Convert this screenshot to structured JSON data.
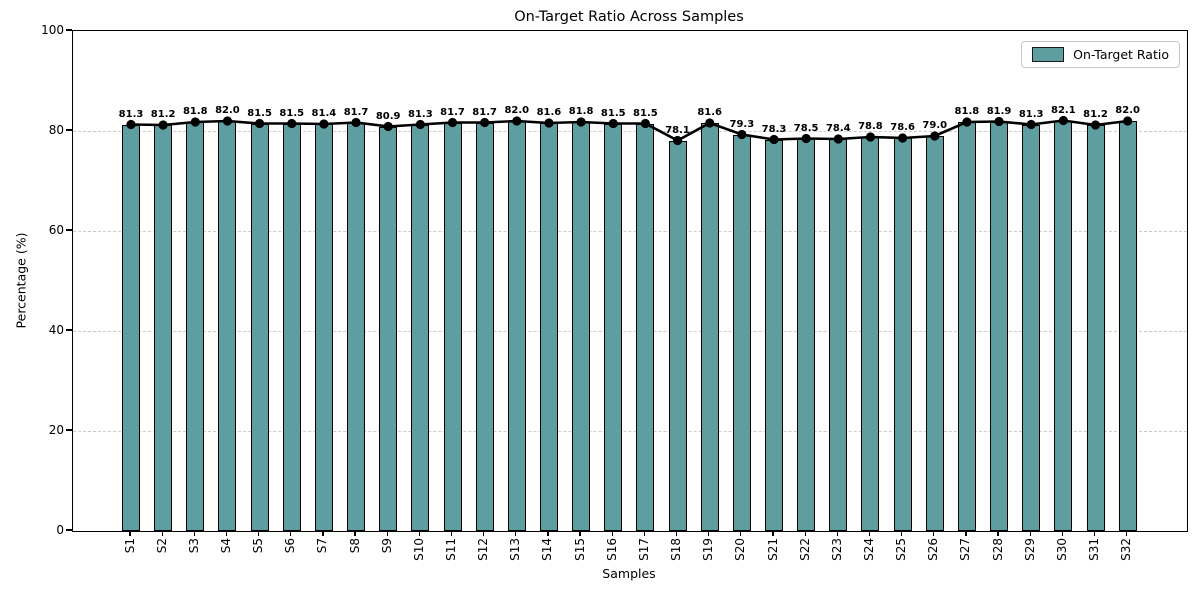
{
  "chart_data": {
    "type": "bar",
    "title": "On-Target Ratio Across Samples",
    "xlabel": "Samples",
    "ylabel": "Percentage (%)",
    "categories": [
      "S1",
      "S2",
      "S3",
      "S4",
      "S5",
      "S6",
      "S7",
      "S8",
      "S9",
      "S10",
      "S11",
      "S12",
      "S13",
      "S14",
      "S15",
      "S16",
      "S17",
      "S18",
      "S19",
      "S20",
      "S21",
      "S22",
      "S23",
      "S24",
      "S25",
      "S26",
      "S27",
      "S28",
      "S29",
      "S30",
      "S31",
      "S32"
    ],
    "series": [
      {
        "name": "On-Target Ratio",
        "values": [
          81.3,
          81.2,
          81.8,
          82.0,
          81.5,
          81.5,
          81.4,
          81.7,
          80.9,
          81.3,
          81.7,
          81.7,
          82.0,
          81.6,
          81.8,
          81.5,
          81.5,
          78.1,
          81.6,
          79.3,
          78.3,
          78.5,
          78.4,
          78.8,
          78.6,
          79.0,
          81.8,
          81.9,
          81.3,
          82.1,
          81.2,
          82.0
        ]
      }
    ],
    "ylim": [
      0,
      100
    ],
    "yticks": [
      0,
      20,
      40,
      60,
      80,
      100
    ],
    "grid": "horizontal-dashed",
    "legend_position": "upper-right",
    "value_labels": "one-decimal-above-markers",
    "overlay": "black line with circular markers on bar tops"
  },
  "legend": {
    "label": "On-Target Ratio"
  },
  "colors": {
    "bar_fill": "#5f9ea0",
    "bar_edge": "#000000",
    "line": "#000000",
    "marker": "#000000",
    "grid": "#cccccc",
    "background": "#ffffff"
  }
}
